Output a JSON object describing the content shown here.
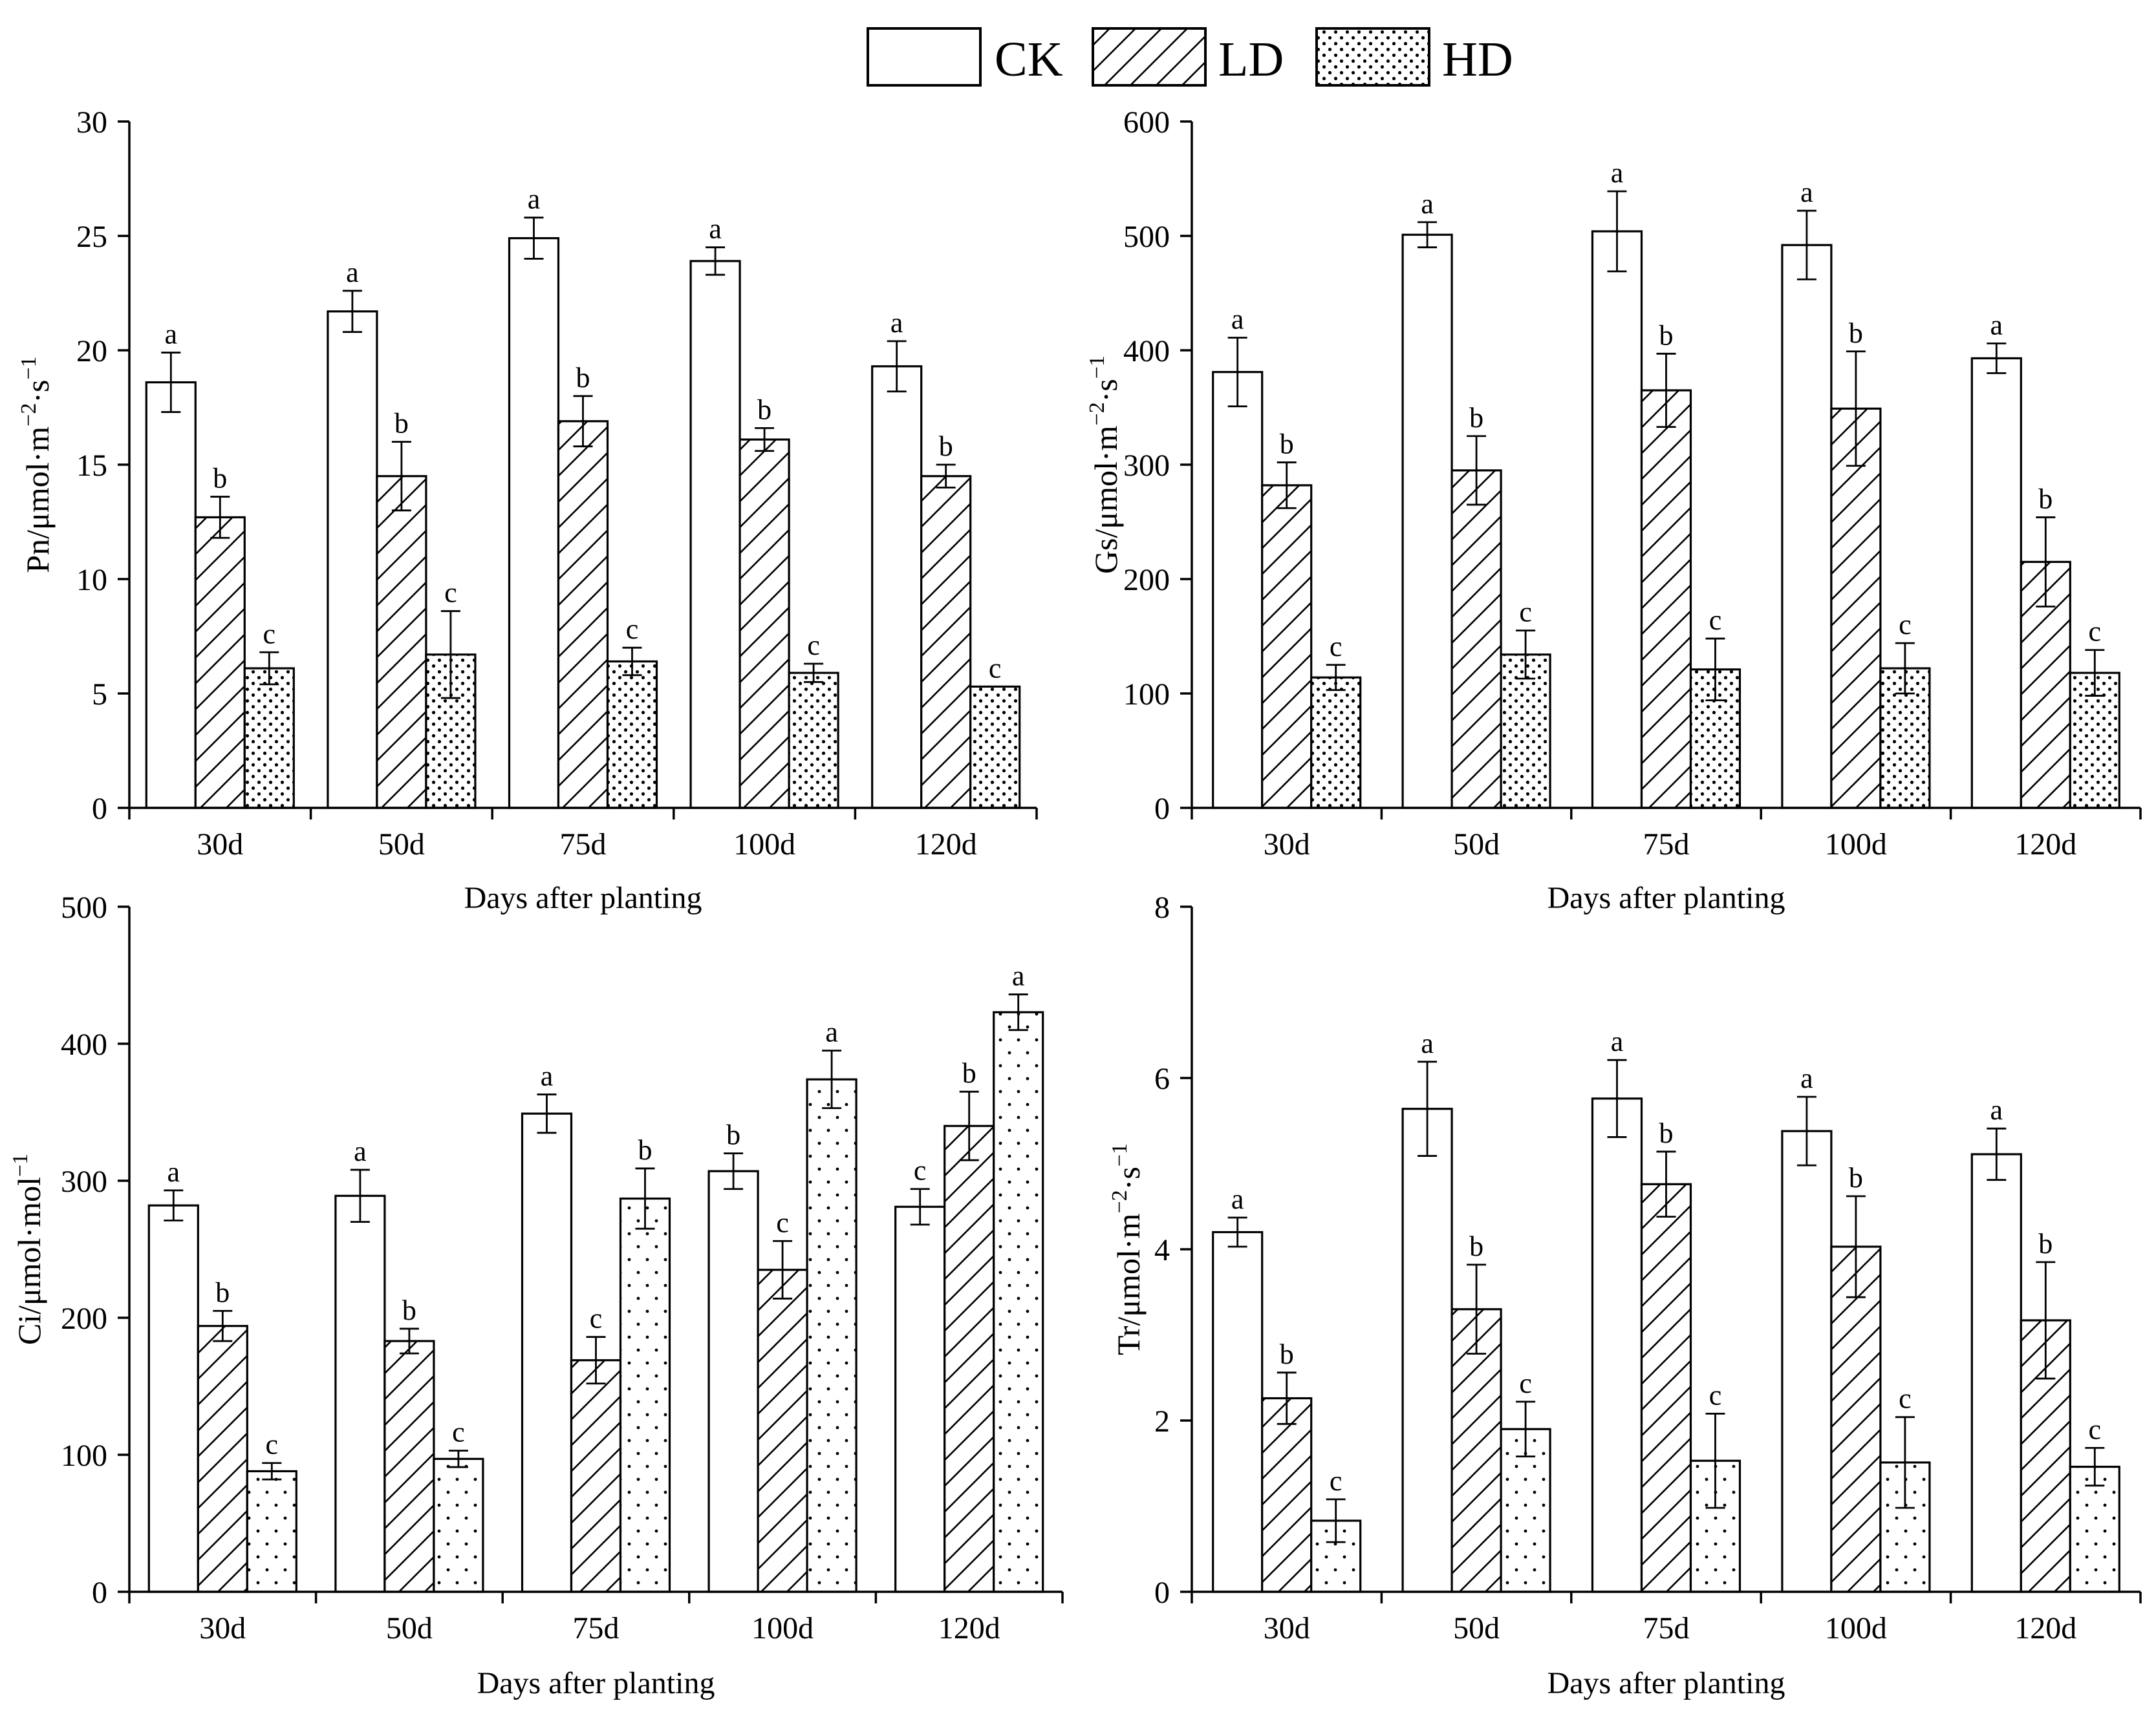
{
  "legend": {
    "items": [
      {
        "name": "CK",
        "pattern": "plain"
      },
      {
        "name": "LD",
        "pattern": "hatch"
      },
      {
        "name": "HD",
        "pattern": "dots"
      }
    ]
  },
  "chart_data": [
    {
      "type": "bar",
      "ylabel": "Pn/μmol·m−2·s−1",
      "ylabel_parts": {
        "pre": "Pn/μmol·m",
        "sup1": "−2",
        "mid": "·s",
        "sup2": "−1"
      },
      "xlabel": "Days after planting",
      "ylim": [
        0,
        30
      ],
      "yticks": [
        0,
        5,
        10,
        15,
        20,
        25,
        30
      ],
      "categories": [
        "30d",
        "50d",
        "75d",
        "100d",
        "120d"
      ],
      "series": [
        {
          "name": "CK",
          "values": [
            18.6,
            21.7,
            24.9,
            23.9,
            19.3
          ],
          "errors": [
            1.3,
            0.9,
            0.9,
            0.6,
            1.1
          ],
          "letters": [
            "a",
            "a",
            "a",
            "a",
            "a"
          ]
        },
        {
          "name": "LD",
          "values": [
            12.7,
            14.5,
            16.9,
            16.1,
            14.5
          ],
          "errors": [
            0.9,
            1.5,
            1.1,
            0.5,
            0.5
          ],
          "letters": [
            "b",
            "b",
            "b",
            "b",
            "b"
          ]
        },
        {
          "name": "HD",
          "values": [
            6.1,
            6.7,
            6.4,
            5.9,
            5.3
          ],
          "errors": [
            0.7,
            1.9,
            0.6,
            0.4,
            0.0
          ],
          "letters": [
            "c",
            "c",
            "c",
            "c",
            "c"
          ]
        }
      ]
    },
    {
      "type": "bar",
      "ylabel": "Gs/μmol·m−2·s−1",
      "ylabel_parts": {
        "pre": "Gs/μmol·m",
        "sup1": "−2",
        "mid": "·s",
        "sup2": "−1"
      },
      "xlabel": "Days after planting",
      "ylim": [
        0,
        600
      ],
      "yticks": [
        0,
        100,
        200,
        300,
        400,
        500,
        600
      ],
      "categories": [
        "30d",
        "50d",
        "75d",
        "100d",
        "120d"
      ],
      "series": [
        {
          "name": "CK",
          "values": [
            381,
            501,
            504,
            492,
            393
          ],
          "errors": [
            30,
            11,
            35,
            30,
            13
          ],
          "letters": [
            "a",
            "a",
            "a",
            "a",
            "a"
          ]
        },
        {
          "name": "LD",
          "values": [
            282,
            295,
            365,
            349,
            215
          ],
          "errors": [
            20,
            30,
            32,
            50,
            39
          ],
          "letters": [
            "b",
            "b",
            "b",
            "b",
            "b"
          ]
        },
        {
          "name": "HD",
          "values": [
            114,
            134,
            121,
            122,
            118
          ],
          "errors": [
            11,
            21,
            27,
            22,
            20
          ],
          "letters": [
            "c",
            "c",
            "c",
            "c",
            "c"
          ]
        }
      ]
    },
    {
      "type": "bar",
      "ylabel": "Ci/μmol·mol−1",
      "ylabel_parts": {
        "pre": "Ci/μmol·mol",
        "sup1": "−1",
        "mid": "",
        "sup2": ""
      },
      "xlabel": "Days after planting",
      "ylim": [
        0,
        500
      ],
      "yticks": [
        0,
        100,
        200,
        300,
        400,
        500
      ],
      "categories": [
        "30d",
        "50d",
        "75d",
        "100d",
        "120d"
      ],
      "series": [
        {
          "name": "CK",
          "values": [
            282,
            289,
            349,
            307,
            281
          ],
          "errors": [
            11,
            19,
            14,
            13,
            13
          ],
          "letters": [
            "a",
            "a",
            "a",
            "b",
            "c"
          ]
        },
        {
          "name": "LD",
          "values": [
            194,
            183,
            169,
            235,
            340
          ],
          "errors": [
            11,
            9,
            17,
            21,
            25
          ],
          "letters": [
            "b",
            "b",
            "c",
            "c",
            "b"
          ]
        },
        {
          "name": "HD",
          "values": [
            88,
            97,
            287,
            374,
            423
          ],
          "errors": [
            6,
            6,
            22,
            21,
            13
          ],
          "letters": [
            "c",
            "c",
            "b",
            "a",
            "a"
          ]
        }
      ]
    },
    {
      "type": "bar",
      "ylabel": "Tr/μmol·m−2·s−1",
      "ylabel_parts": {
        "pre": "Tr/μmol·m",
        "sup1": "−2",
        "mid": "·s",
        "sup2": "−1"
      },
      "xlabel": "Days after planting",
      "ylim": [
        0,
        8
      ],
      "yticks": [
        0,
        2,
        4,
        6,
        8
      ],
      "categories": [
        "30d",
        "50d",
        "75d",
        "100d",
        "120d"
      ],
      "series": [
        {
          "name": "CK",
          "values": [
            4.2,
            5.64,
            5.76,
            5.38,
            5.11
          ],
          "errors": [
            0.17,
            0.55,
            0.45,
            0.4,
            0.3
          ],
          "letters": [
            "a",
            "a",
            "a",
            "a",
            "a"
          ]
        },
        {
          "name": "LD",
          "values": [
            2.26,
            3.3,
            4.76,
            4.03,
            3.17
          ],
          "errors": [
            0.3,
            0.52,
            0.38,
            0.59,
            0.68
          ],
          "letters": [
            "b",
            "b",
            "b",
            "b",
            "b"
          ]
        },
        {
          "name": "HD",
          "values": [
            0.83,
            1.9,
            1.53,
            1.51,
            1.46
          ],
          "errors": [
            0.25,
            0.32,
            0.55,
            0.53,
            0.22
          ],
          "letters": [
            "c",
            "c",
            "c",
            "c",
            "c"
          ]
        }
      ]
    }
  ]
}
